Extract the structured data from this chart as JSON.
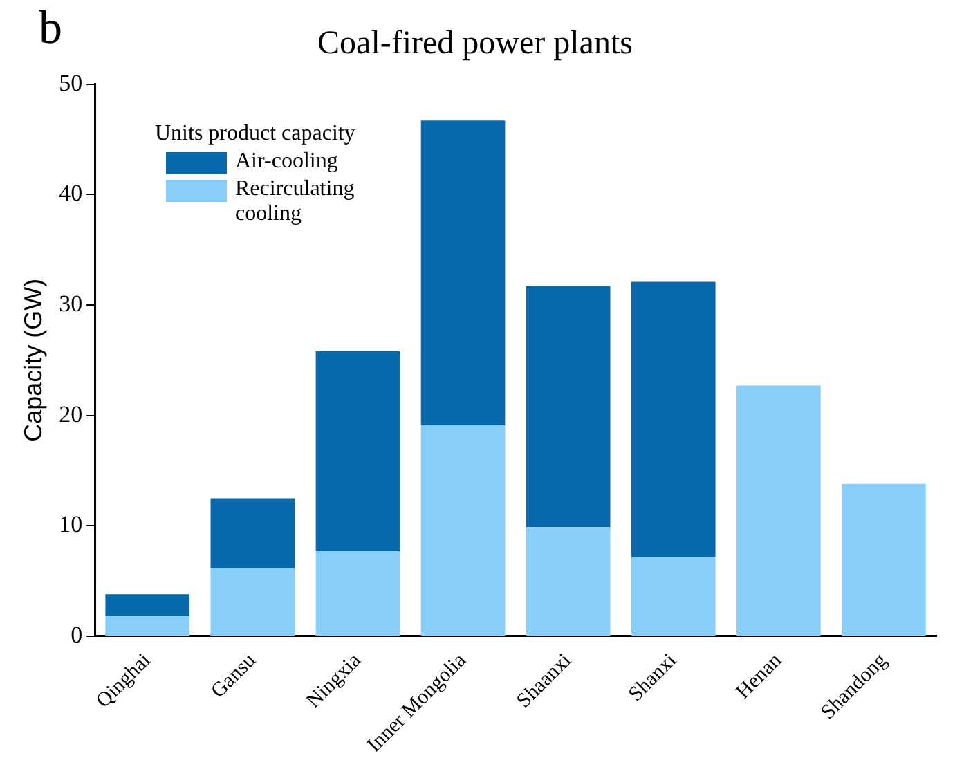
{
  "chart_data": {
    "type": "bar",
    "title": "Coal-fired power plants",
    "ylabel": "Capacity (GW)",
    "legend_title": "Units product capacity",
    "annotations": [
      "b"
    ],
    "categories": [
      "Qinghai",
      "Gansu",
      "Ningxia",
      "Inner Mongolia",
      "Shaanxi",
      "Shanxi",
      "Henan",
      "Shandong"
    ],
    "stacked": true,
    "series": [
      {
        "name": "Recirculating cooling",
        "color": "#87cefa",
        "values": [
          1.8,
          6.2,
          7.7,
          19.1,
          9.9,
          7.2,
          22.7,
          13.8
        ]
      },
      {
        "name": "Air-cooling",
        "color": "#0868ac",
        "values": [
          2.0,
          6.3,
          18.1,
          27.6,
          21.8,
          24.9,
          0,
          0
        ]
      }
    ],
    "ylim": [
      0,
      50
    ],
    "yticks": [
      0,
      10,
      20,
      30,
      40,
      50
    ],
    "grid": false,
    "legend": "top left"
  }
}
